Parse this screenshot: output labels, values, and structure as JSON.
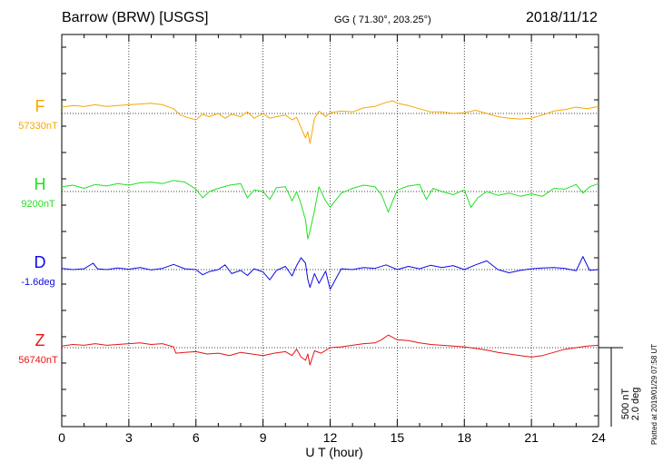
{
  "header": {
    "station": "Barrow (BRW)  [USGS]",
    "coords": "GG ( 71.30°, 203.25°)",
    "date": "2018/11/12"
  },
  "plotted_note": "Plotted at 2019/01/29 07:58 UT",
  "chart_data": {
    "type": "line",
    "xlabel": "U T (hour)",
    "ylabel": "",
    "xlim": [
      0,
      24
    ],
    "xticks": [
      "0",
      "3",
      "6",
      "9",
      "12",
      "15",
      "18",
      "21",
      "24"
    ],
    "grid": true,
    "scale_bar": {
      "nT": "500 nT",
      "deg": "2.0 deg"
    },
    "series": [
      {
        "name": "F",
        "baseline_label": "57330nT",
        "color": "#f5a800",
        "baseline": 57330,
        "unit": "nT",
        "x": [
          0,
          0.5,
          1,
          1.5,
          2,
          2.5,
          3,
          3.5,
          4,
          4.5,
          5,
          5.3,
          5.6,
          6,
          6.3,
          6.6,
          7,
          7.3,
          7.6,
          8,
          8.3,
          8.6,
          9,
          9.3,
          9.6,
          10,
          10.3,
          10.5,
          10.7,
          10.9,
          11,
          11.1,
          11.3,
          11.5,
          11.8,
          12,
          12.5,
          13,
          13.5,
          14,
          14.5,
          14.8,
          15,
          15.5,
          16,
          16.5,
          17,
          17.5,
          18,
          18.5,
          19,
          19.5,
          20,
          20.5,
          21,
          21.5,
          22,
          22.5,
          23,
          23.5,
          24
        ],
        "values": [
          57370,
          57380,
          57375,
          57385,
          57375,
          57380,
          57385,
          57390,
          57395,
          57385,
          57360,
          57320,
          57305,
          57290,
          57325,
          57310,
          57330,
          57300,
          57325,
          57310,
          57340,
          57300,
          57330,
          57300,
          57310,
          57320,
          57290,
          57305,
          57240,
          57175,
          57215,
          57140,
          57300,
          57345,
          57310,
          57335,
          57345,
          57340,
          57365,
          57375,
          57400,
          57410,
          57395,
          57380,
          57360,
          57340,
          57340,
          57330,
          57335,
          57350,
          57330,
          57310,
          57300,
          57295,
          57300,
          57320,
          57345,
          57355,
          57370,
          57360,
          57375
        ]
      },
      {
        "name": "H",
        "baseline_label": "9200nT",
        "color": "#22e022",
        "baseline": 9200,
        "unit": "nT",
        "x": [
          0,
          0.5,
          1,
          1.5,
          2,
          2.5,
          3,
          3.5,
          4,
          4.5,
          5,
          5.5,
          6,
          6.3,
          6.6,
          7,
          7.5,
          8,
          8.3,
          8.6,
          9,
          9.3,
          9.6,
          10,
          10.3,
          10.5,
          10.7,
          10.9,
          11,
          11.1,
          11.3,
          11.5,
          11.8,
          12,
          12.5,
          13,
          13.5,
          14,
          14.3,
          14.6,
          15,
          15.5,
          16,
          16.3,
          16.6,
          17,
          17.5,
          18,
          18.3,
          18.6,
          19,
          19.5,
          20,
          20.5,
          21,
          21.5,
          22,
          22.5,
          23,
          23.3,
          23.6,
          24
        ],
        "values": [
          9230,
          9240,
          9220,
          9245,
          9235,
          9250,
          9240,
          9255,
          9260,
          9250,
          9270,
          9260,
          9215,
          9160,
          9200,
          9220,
          9240,
          9250,
          9160,
          9210,
          9200,
          9150,
          9225,
          9230,
          9140,
          9200,
          9120,
          9020,
          8900,
          8950,
          9080,
          9230,
          9140,
          9100,
          9190,
          9220,
          9240,
          9230,
          9180,
          9070,
          9210,
          9235,
          9245,
          9150,
          9220,
          9200,
          9180,
          9210,
          9100,
          9160,
          9200,
          9175,
          9190,
          9170,
          9185,
          9170,
          9220,
          9215,
          9245,
          9190,
          9230,
          9250
        ]
      },
      {
        "name": "D",
        "baseline_label": "-1.6deg",
        "color": "#0a0ae6",
        "baseline": -1.6,
        "unit": "deg",
        "x": [
          0,
          0.5,
          1,
          1.4,
          1.6,
          2,
          2.5,
          3,
          3.5,
          4,
          4.5,
          5,
          5.5,
          6,
          6.3,
          6.6,
          7,
          7.3,
          7.6,
          8,
          8.3,
          8.6,
          9,
          9.3,
          9.6,
          10,
          10.3,
          10.5,
          10.7,
          10.9,
          11,
          11.1,
          11.3,
          11.5,
          11.8,
          12,
          12.5,
          13,
          13.5,
          14,
          14.5,
          15,
          15.5,
          16,
          16.5,
          17,
          17.5,
          18,
          18.5,
          19,
          19.5,
          20,
          20.5,
          21,
          21.5,
          22,
          22.5,
          23,
          23.3,
          23.6,
          24
        ],
        "values": [
          -1.57,
          -1.6,
          -1.58,
          -1.44,
          -1.58,
          -1.6,
          -1.56,
          -1.59,
          -1.55,
          -1.61,
          -1.57,
          -1.47,
          -1.58,
          -1.6,
          -1.73,
          -1.65,
          -1.6,
          -1.48,
          -1.7,
          -1.62,
          -1.75,
          -1.58,
          -1.66,
          -1.86,
          -1.62,
          -1.52,
          -1.76,
          -1.5,
          -1.3,
          -1.44,
          -1.85,
          -2.05,
          -1.7,
          -1.95,
          -1.64,
          -2.1,
          -1.58,
          -1.6,
          -1.55,
          -1.57,
          -1.48,
          -1.6,
          -1.52,
          -1.58,
          -1.49,
          -1.55,
          -1.5,
          -1.6,
          -1.48,
          -1.38,
          -1.6,
          -1.68,
          -1.62,
          -1.58,
          -1.56,
          -1.55,
          -1.57,
          -1.63,
          -1.27,
          -1.62,
          -1.6
        ]
      },
      {
        "name": "Z",
        "baseline_label": "56740nT",
        "color": "#e61414",
        "baseline": 56740,
        "unit": "nT",
        "x": [
          0,
          0.5,
          1,
          1.5,
          2,
          2.5,
          3,
          3.5,
          4,
          4.5,
          5,
          5.1,
          5.5,
          6,
          6.5,
          7,
          7.5,
          8,
          8.5,
          9,
          9.5,
          10,
          10.3,
          10.5,
          10.7,
          10.9,
          11,
          11.1,
          11.3,
          11.6,
          12,
          12.5,
          13,
          13.5,
          14,
          14.3,
          14.6,
          15,
          15.5,
          16,
          16.5,
          17,
          17.5,
          18,
          18.5,
          19,
          19.5,
          20,
          20.5,
          21,
          21.5,
          22,
          22.5,
          23,
          23.5,
          24
        ],
        "values": [
          56750,
          56760,
          56755,
          56765,
          56755,
          56760,
          56765,
          56770,
          56760,
          56765,
          56745,
          56705,
          56710,
          56715,
          56700,
          56705,
          56690,
          56710,
          56700,
          56690,
          56705,
          56715,
          56690,
          56730,
          56680,
          56660,
          56700,
          56630,
          56720,
          56705,
          56740,
          56745,
          56755,
          56765,
          56770,
          56790,
          56820,
          56790,
          56785,
          56770,
          56760,
          56755,
          56750,
          56745,
          56735,
          56725,
          56710,
          56700,
          56690,
          56680,
          56690,
          56710,
          56730,
          56740,
          56750,
          56755
        ]
      }
    ]
  }
}
